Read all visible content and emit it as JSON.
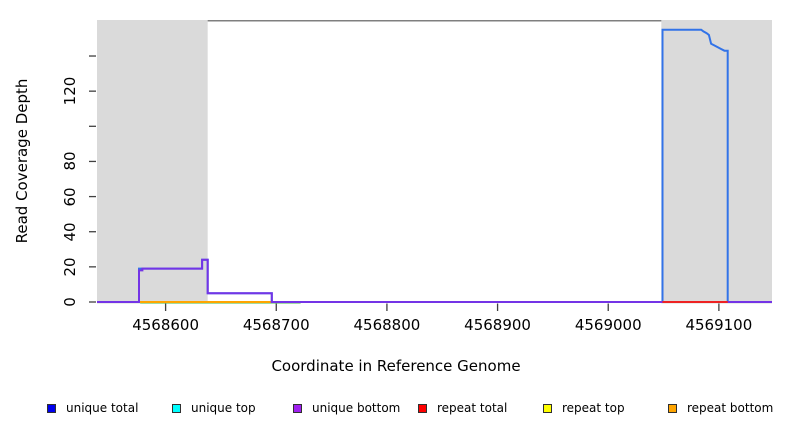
{
  "figure": {
    "xlabel": "Coordinate in Reference Genome",
    "ylabel": "Read Coverage Depth"
  },
  "chart_data": {
    "type": "line",
    "subtype": "step-coverage",
    "title": "",
    "xlabel": "Coordinate in Reference Genome",
    "ylabel": "Read Coverage Depth",
    "xlim": [
      4568538,
      4569148
    ],
    "ylim": [
      0,
      160.5
    ],
    "grid": false,
    "x_ticks": [
      {
        "value": 4568600,
        "label": "4568600"
      },
      {
        "value": 4568700,
        "label": "4568700"
      },
      {
        "value": 4568800,
        "label": "4568800"
      },
      {
        "value": 4568900,
        "label": "4568900"
      },
      {
        "value": 4569000,
        "label": "4569000"
      },
      {
        "value": 4569100,
        "label": "4569100"
      }
    ],
    "y_ticks": [
      {
        "value": 0,
        "label": "0"
      },
      {
        "value": 20,
        "label": "20"
      },
      {
        "value": 40,
        "label": "40"
      },
      {
        "value": 60,
        "label": "60"
      },
      {
        "value": 80,
        "label": "80"
      },
      {
        "value": 100,
        "label": ""
      },
      {
        "value": 120,
        "label": "120"
      },
      {
        "value": 140,
        "label": ""
      }
    ],
    "shaded_regions": [
      {
        "name": "left-flank-region",
        "x1": 4568538,
        "x2": 4568638,
        "color": "#dadada"
      },
      {
        "name": "right-flank-region",
        "x1": 4569048,
        "x2": 4569148,
        "color": "#dadada"
      }
    ],
    "series": [
      {
        "name": "unique total",
        "legend_color": "#0000ee",
        "line_color": "#3273e8",
        "points": [
          [
            4568538,
            0
          ],
          [
            4568576,
            0
          ],
          [
            4568576,
            19
          ],
          [
            4568633,
            19
          ],
          [
            4568633,
            24
          ],
          [
            4568638,
            24
          ],
          [
            4568638,
            5
          ],
          [
            4568696,
            5
          ],
          [
            4568696,
            0
          ],
          [
            4569049,
            0
          ],
          [
            4569049,
            155
          ],
          [
            4569084,
            155
          ],
          [
            4569086,
            154
          ],
          [
            4569089,
            153
          ],
          [
            4569091,
            152
          ],
          [
            4569093,
            147
          ],
          [
            4569096,
            146
          ],
          [
            4569099,
            145
          ],
          [
            4569102,
            144
          ],
          [
            4569105,
            143
          ],
          [
            4569108,
            143
          ],
          [
            4569108,
            0
          ],
          [
            4569148,
            0
          ]
        ]
      },
      {
        "name": "unique top",
        "legend_color": "#00ffff",
        "line_color": "#00ffff",
        "points": [
          [
            4568538,
            0
          ],
          [
            4569148,
            0
          ]
        ]
      },
      {
        "name": "unique bottom",
        "legend_color": "#a020f0",
        "line_color": "#7434e6",
        "points": [
          [
            4568538,
            0
          ],
          [
            4568576,
            0
          ],
          [
            4568576,
            18
          ],
          [
            4568579,
            18
          ],
          [
            4568579,
            19
          ],
          [
            4568633,
            19
          ],
          [
            4568633,
            24
          ],
          [
            4568638,
            24
          ],
          [
            4568638,
            5
          ],
          [
            4568696,
            5
          ],
          [
            4568696,
            0
          ],
          [
            4569148,
            0
          ]
        ]
      },
      {
        "name": "repeat total",
        "legend_color": "#ff0000",
        "line_color": "#ee2222",
        "points": [
          [
            4568538,
            0
          ],
          [
            4569148,
            0
          ]
        ]
      },
      {
        "name": "repeat top",
        "legend_color": "#ffff00",
        "line_color": "#ffff00",
        "points": [
          [
            4568538,
            0
          ],
          [
            4569148,
            0
          ]
        ]
      },
      {
        "name": "repeat bottom",
        "legend_color": "#ffa500",
        "line_color": "#ffa500",
        "points": [
          [
            4568538,
            0
          ],
          [
            4569148,
            0
          ]
        ]
      }
    ],
    "baseline_segments": [
      {
        "name": "blended-green-baseline",
        "x1": 4568577,
        "x2": 4568722,
        "color": "#82d182"
      },
      {
        "name": "repeat-total-visible-baseline",
        "x1": 4569049,
        "x2": 4569108,
        "color": "#ee2222"
      }
    ],
    "legend_position": "bottom"
  },
  "legend": {
    "items": [
      {
        "label": "unique total",
        "color": "#0000ee"
      },
      {
        "label": "unique top",
        "color": "#00ffff"
      },
      {
        "label": "unique bottom",
        "color": "#a020f0"
      },
      {
        "label": "repeat total",
        "color": "#ff0000"
      },
      {
        "label": "repeat top",
        "color": "#ffff00"
      },
      {
        "label": "repeat bottom",
        "color": "#ffa500"
      }
    ]
  }
}
